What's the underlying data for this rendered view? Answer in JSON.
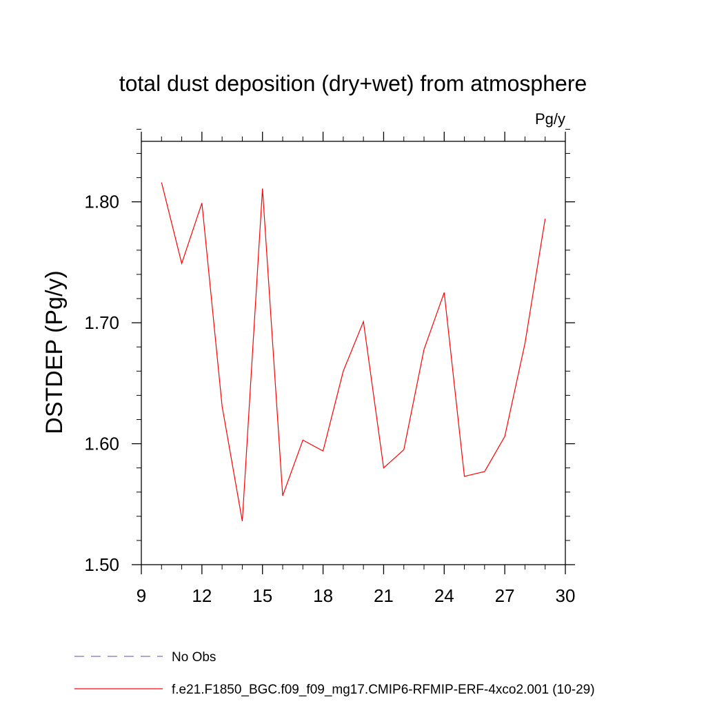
{
  "chart_data": {
    "type": "line",
    "title": "total dust deposition (dry+wet) from atmosphere",
    "units_label": "Pg/y",
    "ylabel": "DSTDEP  (Pg/y)",
    "xlabel": "",
    "xlim": [
      9,
      30
    ],
    "ylim": [
      1.5,
      1.85
    ],
    "xticks": [
      9,
      12,
      15,
      18,
      21,
      24,
      27,
      30
    ],
    "xtick_labels": [
      "9",
      "12",
      "15",
      "18",
      "21",
      "24",
      "27",
      "30"
    ],
    "yticks": [
      1.5,
      1.6,
      1.7,
      1.8
    ],
    "ytick_labels": [
      "1.50",
      "1.60",
      "1.70",
      "1.80"
    ],
    "grid": false,
    "legend_position": "bottom",
    "legend": [
      {
        "label": "No Obs",
        "color": "#7b76c4",
        "style": "dashed"
      },
      {
        "label": "f.e21.F1850_BGC.f09_f09_mg17.CMIP6-RFMIP-ERF-4xco2.001 (10-29)",
        "color": "#ff0000",
        "style": "solid"
      }
    ],
    "series": [
      {
        "name": "f.e21.F1850_BGC.f09_f09_mg17.CMIP6-RFMIP-ERF-4xco2.001 (10-29)",
        "color": "#ff0000",
        "x": [
          10,
          11,
          12,
          13,
          14,
          15,
          16,
          17,
          18,
          19,
          20,
          21,
          22,
          23,
          24,
          25,
          26,
          27,
          28,
          29
        ],
        "y": [
          1.816,
          1.749,
          1.799,
          1.631,
          1.536,
          1.811,
          1.557,
          1.603,
          1.594,
          1.66,
          1.701,
          1.58,
          1.595,
          1.678,
          1.725,
          1.573,
          1.577,
          1.606,
          1.683,
          1.786
        ]
      }
    ]
  }
}
